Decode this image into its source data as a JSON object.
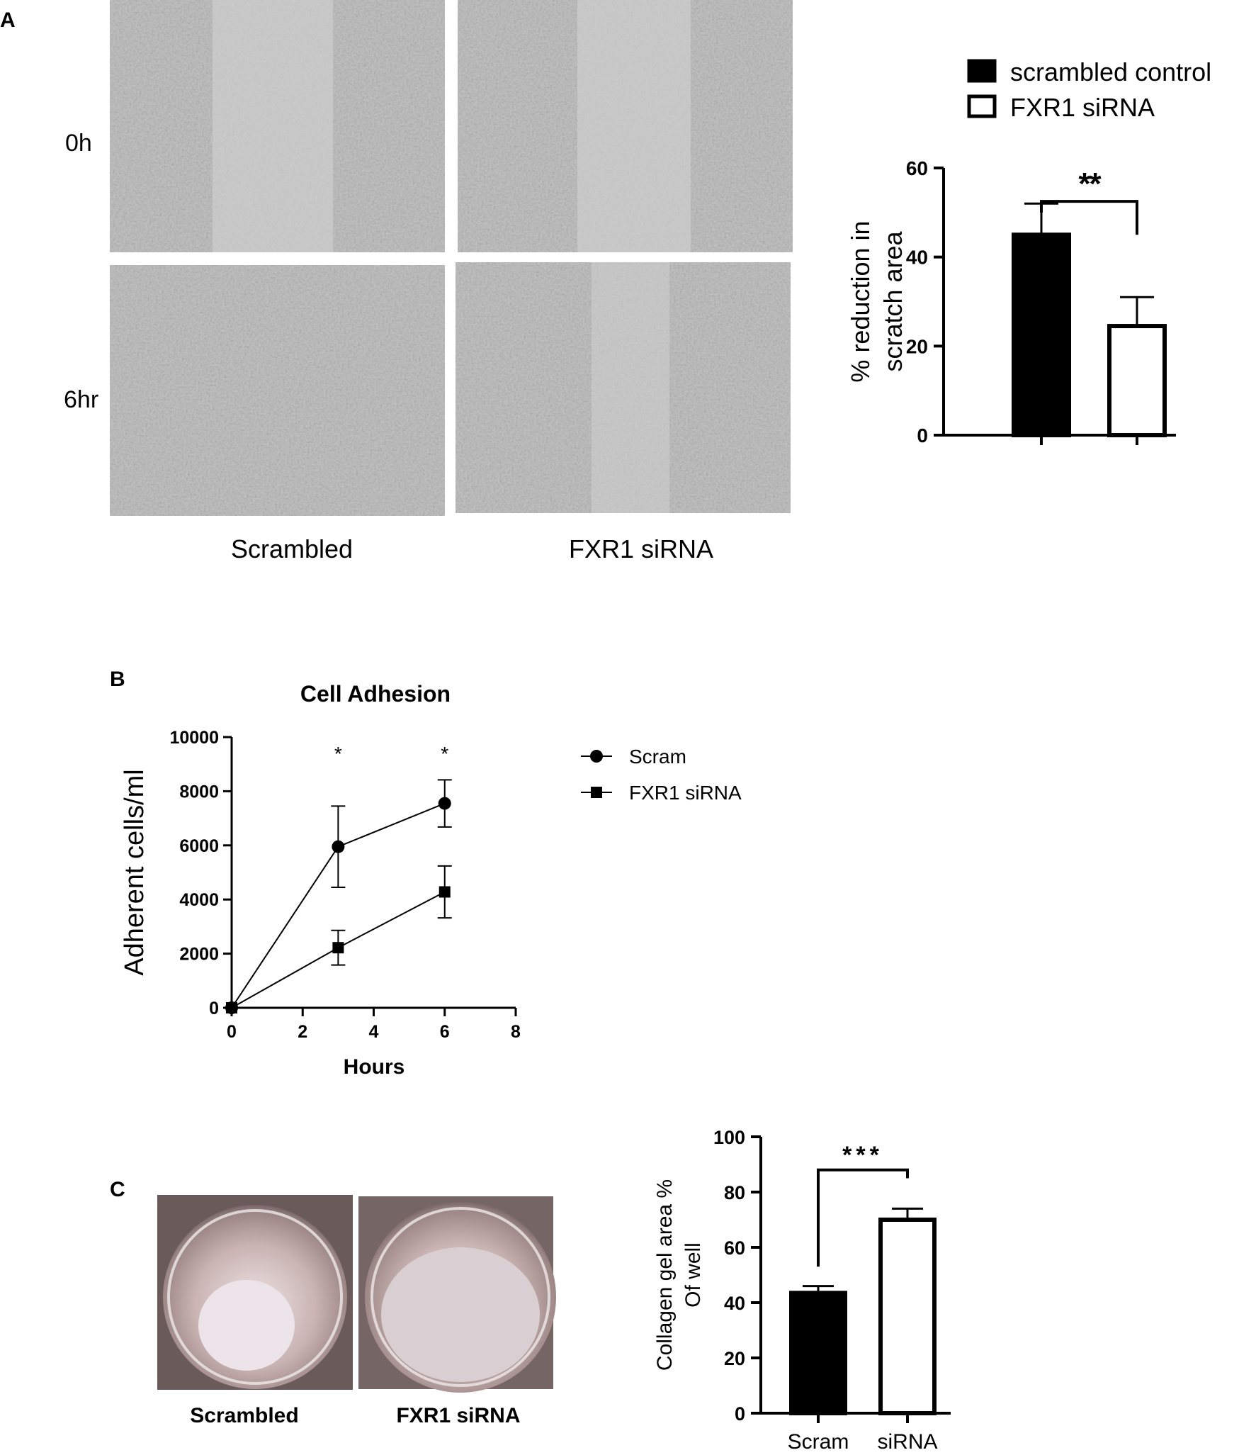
{
  "panel_a": {
    "letter": "A",
    "row_labels": [
      "0h",
      "6hr"
    ],
    "col_labels": [
      "Scrambled",
      "FXR1 siRNA"
    ]
  },
  "panel_b": {
    "letter": "B"
  },
  "panel_c": {
    "letter": "C",
    "photo_labels": [
      "Scrambled",
      "FXR1 siRNA"
    ]
  },
  "colors": {
    "filled": "#000000",
    "open": "#ffffff",
    "photo_bg": "#c9c9c9"
  },
  "chart_data": [
    {
      "id": "scratch",
      "type": "bar",
      "categories": [
        "scrambled control",
        "FXR1 siRNA"
      ],
      "values": [
        45,
        24.5
      ],
      "errors": [
        7,
        6.5
      ],
      "fills": [
        "filled",
        "open"
      ],
      "ylabel_lines": [
        "% reduction in",
        "scratch area"
      ],
      "ylim": [
        0,
        60
      ],
      "yticks": [
        0,
        20,
        40,
        60
      ],
      "legend": [
        "scrambled control",
        "FXR1 siRNA"
      ],
      "significance": "**"
    },
    {
      "id": "adhesion",
      "type": "line",
      "title": "Cell Adhesion",
      "xlabel": "Hours",
      "ylabel": "Adherent cells/ml",
      "xlim": [
        0,
        8
      ],
      "xticks": [
        0,
        2,
        4,
        6,
        8
      ],
      "ylim": [
        0,
        10000
      ],
      "yticks": [
        0,
        2000,
        4000,
        6000,
        8000,
        10000
      ],
      "series": [
        {
          "name": "Scram",
          "marker": "circle",
          "x": [
            0,
            3,
            6
          ],
          "y": [
            0,
            5950,
            7550
          ],
          "err": [
            0,
            1500,
            870
          ]
        },
        {
          "name": "FXR1 siRNA",
          "marker": "square",
          "x": [
            0,
            3,
            6
          ],
          "y": [
            0,
            2220,
            4280
          ],
          "err": [
            0,
            640,
            960
          ]
        }
      ],
      "annotations": [
        {
          "x": 3,
          "text": "*"
        },
        {
          "x": 6,
          "text": "*"
        }
      ],
      "legend_position": "right"
    },
    {
      "id": "collagen",
      "type": "bar",
      "categories": [
        "Scram",
        "siRNA"
      ],
      "values": [
        43.5,
        70
      ],
      "errors": [
        2.5,
        4
      ],
      "fills": [
        "filled",
        "open"
      ],
      "ylabel_lines": [
        "Collagen gel area %",
        "Of well"
      ],
      "ylim": [
        0,
        100
      ],
      "yticks": [
        0,
        20,
        40,
        60,
        80,
        100
      ],
      "significance": "***"
    }
  ]
}
